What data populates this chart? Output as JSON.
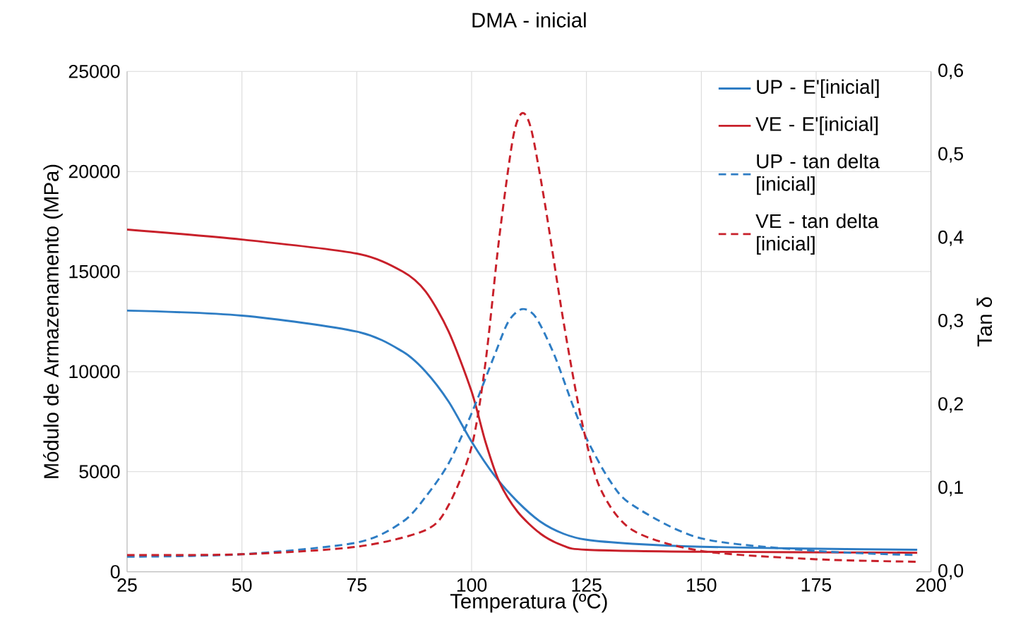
{
  "chart_data": {
    "type": "line",
    "title": "DMA - inicial",
    "xlabel": "Temperatura (ºC)",
    "ylabel": "Módulo de Armazenamento (MPa)",
    "y2label": "Tan δ",
    "xlim": [
      25,
      200
    ],
    "xticks": [
      25,
      50,
      75,
      100,
      125,
      150,
      175,
      200
    ],
    "ylim": [
      0,
      25000
    ],
    "yticks": [
      0,
      5000,
      10000,
      15000,
      20000,
      25000
    ],
    "y2lim": [
      0,
      0.6
    ],
    "y2ticks": [
      {
        "value": 0,
        "label": "0,0"
      },
      {
        "value": 0.1,
        "label": "0,1"
      },
      {
        "value": 0.2,
        "label": "0,2"
      },
      {
        "value": 0.3,
        "label": "0,3"
      },
      {
        "value": 0.4,
        "label": "0,4"
      },
      {
        "value": 0.5,
        "label": "0,5"
      },
      {
        "value": 0.6,
        "label": "0,6"
      }
    ],
    "grid": true,
    "legend": "top right",
    "marker": "none",
    "series": [
      {
        "name": "UP - E'[inicial]",
        "color": "#2e7dc4",
        "line_style": "solid",
        "x": [
          25,
          50,
          75,
          85,
          90,
          95,
          100,
          105,
          110,
          115,
          120,
          125,
          135,
          150,
          175,
          197
        ],
        "values": [
          13050,
          12800,
          12000,
          11000,
          10000,
          8500,
          6500,
          4800,
          3500,
          2500,
          1900,
          1600,
          1400,
          1250,
          1150,
          1100
        ]
      },
      {
        "name": "VE - E'[inicial]",
        "color": "#c8202a",
        "line_style": "solid",
        "x": [
          25,
          50,
          75,
          85,
          90,
          95,
          100,
          103,
          106,
          110,
          115,
          120,
          125,
          150,
          197
        ],
        "values": [
          17100,
          16600,
          15900,
          15000,
          14000,
          12000,
          9000,
          6500,
          4500,
          3000,
          1900,
          1300,
          1100,
          1000,
          950
        ]
      },
      {
        "name": "UP - tan delta [inicial]",
        "color": "#2e7dc4",
        "line_style": "dashed",
        "axis": "y2",
        "x": [
          25,
          50,
          75,
          85,
          90,
          95,
          100,
          105,
          108,
          111,
          114,
          118,
          122,
          125,
          130,
          135,
          150,
          175,
          197
        ],
        "values": [
          0.018,
          0.021,
          0.035,
          0.06,
          0.09,
          0.13,
          0.19,
          0.26,
          0.3,
          0.315,
          0.305,
          0.26,
          0.2,
          0.16,
          0.11,
          0.08,
          0.04,
          0.025,
          0.02
        ]
      },
      {
        "name": "VE - tan delta [inicial]",
        "color": "#c8202a",
        "line_style": "dashed",
        "axis": "y2",
        "x": [
          25,
          50,
          75,
          90,
          95,
          100,
          103,
          106,
          109,
          111,
          113,
          116,
          120,
          124,
          128,
          135,
          150,
          175,
          197
        ],
        "values": [
          0.02,
          0.021,
          0.03,
          0.05,
          0.08,
          0.15,
          0.25,
          0.4,
          0.52,
          0.55,
          0.53,
          0.44,
          0.3,
          0.18,
          0.1,
          0.05,
          0.025,
          0.015,
          0.012
        ]
      }
    ]
  }
}
